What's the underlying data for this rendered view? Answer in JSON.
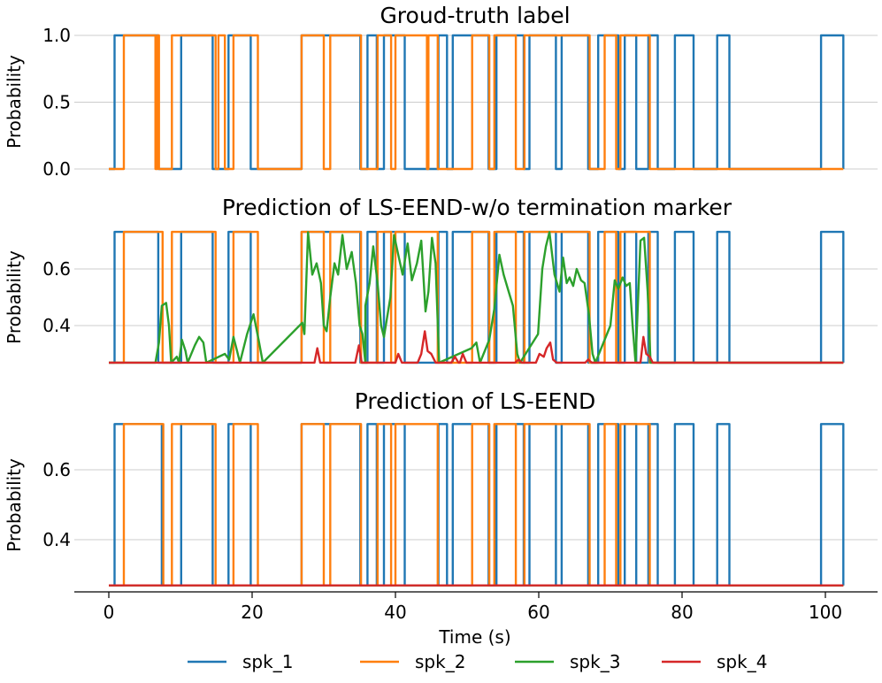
{
  "colors": {
    "spk_1": "#1f77b4",
    "spk_2": "#ff7f0e",
    "spk_3": "#2ca02c",
    "spk_4": "#d62728",
    "grid": "#cccccc"
  },
  "chart_data": [
    {
      "type": "line",
      "title": "Groud-truth label",
      "ylabel": "Probability",
      "xlabel": "",
      "xlim": [
        -2,
        108
      ],
      "ylim": [
        -0.03,
        1.03
      ],
      "yticks": [
        0.0,
        0.5,
        1.0
      ],
      "ytick_labels": [
        "0.0",
        "0.5",
        "1.0"
      ],
      "grid": true,
      "series": [
        {
          "name": "spk_1",
          "low": 0.0,
          "high": 1.0,
          "segments": [
            [
              0.8,
              6.9
            ],
            [
              10.1,
              14.5
            ],
            [
              16.7,
              19.8
            ],
            [
              26.9,
              35.1
            ],
            [
              36.1,
              37.4
            ],
            [
              38.4,
              41.3
            ],
            [
              46.0,
              47.2
            ],
            [
              48.0,
              53.0
            ],
            [
              54.1,
              57.9
            ],
            [
              58.7,
              62.4
            ],
            [
              63.2,
              66.9
            ],
            [
              68.3,
              71.1
            ],
            [
              72.0,
              73.6
            ],
            [
              75.3,
              76.6
            ],
            [
              79.0,
              81.6
            ],
            [
              84.9,
              86.6
            ],
            [
              99.4,
              102.5
            ]
          ]
        },
        {
          "name": "spk_2",
          "low": 0.0,
          "high": 1.0,
          "segments": [
            [
              2.1,
              6.5
            ],
            [
              6.8,
              7.0
            ],
            [
              8.8,
              14.9
            ],
            [
              15.3,
              16.2
            ],
            [
              17.4,
              20.8
            ],
            [
              26.9,
              30.0
            ],
            [
              30.9,
              35.2
            ],
            [
              37.5,
              39.4
            ],
            [
              40.0,
              44.4
            ],
            [
              44.6,
              45.9
            ],
            [
              50.7,
              53.1
            ],
            [
              53.8,
              56.8
            ],
            [
              58.0,
              67.1
            ],
            [
              69.2,
              70.8
            ],
            [
              71.4,
              75.5
            ]
          ]
        }
      ]
    },
    {
      "type": "line",
      "title": "Prediction of LS-EEND-w/o termination marker",
      "ylabel": "Probability",
      "xlabel": "",
      "xlim": [
        -2,
        108
      ],
      "ylim": [
        0.26,
        0.745
      ],
      "yticks": [
        0.4,
        0.6
      ],
      "ytick_labels": [
        "0.4",
        "0.6"
      ],
      "grid": true,
      "series": [
        {
          "name": "spk_1",
          "low": 0.269,
          "high": 0.731,
          "segments": [
            [
              0.8,
              6.9
            ],
            [
              10.1,
              14.5
            ],
            [
              16.7,
              19.8
            ],
            [
              26.9,
              35.1
            ],
            [
              36.1,
              37.4
            ],
            [
              38.4,
              41.3
            ],
            [
              46.0,
              47.2
            ],
            [
              48.0,
              53.0
            ],
            [
              54.1,
              57.9
            ],
            [
              58.7,
              62.4
            ],
            [
              63.2,
              66.9
            ],
            [
              68.3,
              71.1
            ],
            [
              72.0,
              73.6
            ],
            [
              75.3,
              76.6
            ],
            [
              79.0,
              81.6
            ],
            [
              84.9,
              86.6
            ],
            [
              99.4,
              102.5
            ]
          ]
        },
        {
          "name": "spk_2",
          "low": 0.269,
          "high": 0.731,
          "segments": [
            [
              2.1,
              7.5
            ],
            [
              8.8,
              14.9
            ],
            [
              17.4,
              20.8
            ],
            [
              26.9,
              30.0
            ],
            [
              30.9,
              35.2
            ],
            [
              37.5,
              39.4
            ],
            [
              40.0,
              45.9
            ],
            [
              50.7,
              53.1
            ],
            [
              53.8,
              56.8
            ],
            [
              58.0,
              67.1
            ],
            [
              69.2,
              70.8
            ],
            [
              71.4,
              75.5
            ]
          ]
        },
        {
          "name": "spk_3",
          "baseline": 0.269,
          "points": [
            [
              6.5,
              0.269
            ],
            [
              7.0,
              0.34
            ],
            [
              7.4,
              0.47
            ],
            [
              8.0,
              0.48
            ],
            [
              8.4,
              0.4
            ],
            [
              8.7,
              0.269
            ],
            [
              9.5,
              0.29
            ],
            [
              9.8,
              0.269
            ],
            [
              10.2,
              0.35
            ],
            [
              10.7,
              0.31
            ],
            [
              11.0,
              0.269
            ],
            [
              12.0,
              0.33
            ],
            [
              12.6,
              0.36
            ],
            [
              13.2,
              0.34
            ],
            [
              13.6,
              0.269
            ],
            [
              16.2,
              0.3
            ],
            [
              16.8,
              0.28
            ],
            [
              17.4,
              0.36
            ],
            [
              17.9,
              0.31
            ],
            [
              18.3,
              0.269
            ],
            [
              19.3,
              0.37
            ],
            [
              20.2,
              0.44
            ],
            [
              20.9,
              0.35
            ],
            [
              21.5,
              0.269
            ],
            [
              27.0,
              0.41
            ],
            [
              27.3,
              0.37
            ],
            [
              27.8,
              0.73
            ],
            [
              28.4,
              0.58
            ],
            [
              29.0,
              0.62
            ],
            [
              29.6,
              0.55
            ],
            [
              30.0,
              0.4
            ],
            [
              30.4,
              0.38
            ],
            [
              30.9,
              0.5
            ],
            [
              31.5,
              0.62
            ],
            [
              32.0,
              0.58
            ],
            [
              32.6,
              0.72
            ],
            [
              33.2,
              0.6
            ],
            [
              33.9,
              0.66
            ],
            [
              34.5,
              0.55
            ],
            [
              35.0,
              0.4
            ],
            [
              35.4,
              0.37
            ],
            [
              35.8,
              0.269
            ],
            [
              35.8,
              0.47
            ],
            [
              36.4,
              0.55
            ],
            [
              36.9,
              0.68
            ],
            [
              37.5,
              0.55
            ],
            [
              38.0,
              0.4
            ],
            [
              38.4,
              0.36
            ],
            [
              39.3,
              0.5
            ],
            [
              39.8,
              0.72
            ],
            [
              40.4,
              0.65
            ],
            [
              41.0,
              0.58
            ],
            [
              41.7,
              0.69
            ],
            [
              42.3,
              0.56
            ],
            [
              43.0,
              0.62
            ],
            [
              43.6,
              0.7
            ],
            [
              44.2,
              0.45
            ],
            [
              44.6,
              0.52
            ],
            [
              45.1,
              0.71
            ],
            [
              45.6,
              0.62
            ],
            [
              46.1,
              0.269
            ],
            [
              50.6,
              0.32
            ],
            [
              51.3,
              0.34
            ],
            [
              51.8,
              0.269
            ],
            [
              53.1,
              0.35
            ],
            [
              53.8,
              0.46
            ],
            [
              54.5,
              0.65
            ],
            [
              55.1,
              0.58
            ],
            [
              55.8,
              0.52
            ],
            [
              56.4,
              0.47
            ],
            [
              57.0,
              0.3
            ],
            [
              57.4,
              0.269
            ],
            [
              59.9,
              0.37
            ],
            [
              60.5,
              0.6
            ],
            [
              61.0,
              0.68
            ],
            [
              61.5,
              0.73
            ],
            [
              62.2,
              0.58
            ],
            [
              62.9,
              0.52
            ],
            [
              63.4,
              0.64
            ],
            [
              63.9,
              0.55
            ],
            [
              64.3,
              0.57
            ],
            [
              64.8,
              0.54
            ],
            [
              65.3,
              0.6
            ],
            [
              65.9,
              0.56
            ],
            [
              66.4,
              0.55
            ],
            [
              67.0,
              0.44
            ],
            [
              67.5,
              0.3
            ],
            [
              67.9,
              0.269
            ],
            [
              70.0,
              0.4
            ],
            [
              70.6,
              0.56
            ],
            [
              71.1,
              0.53
            ],
            [
              71.7,
              0.57
            ],
            [
              72.2,
              0.54
            ],
            [
              72.7,
              0.55
            ],
            [
              73.1,
              0.4
            ],
            [
              73.5,
              0.27
            ],
            [
              74.2,
              0.7
            ],
            [
              74.7,
              0.71
            ],
            [
              75.2,
              0.52
            ],
            [
              75.6,
              0.269
            ]
          ]
        },
        {
          "name": "spk_4",
          "baseline": 0.269,
          "points": [
            [
              0.0,
              0.269
            ],
            [
              28.7,
              0.269
            ],
            [
              29.1,
              0.32
            ],
            [
              29.5,
              0.269
            ],
            [
              34.4,
              0.269
            ],
            [
              34.9,
              0.33
            ],
            [
              35.3,
              0.269
            ],
            [
              40.0,
              0.269
            ],
            [
              40.4,
              0.3
            ],
            [
              40.9,
              0.269
            ],
            [
              43.1,
              0.269
            ],
            [
              43.6,
              0.3
            ],
            [
              44.1,
              0.38
            ],
            [
              44.5,
              0.31
            ],
            [
              45.0,
              0.3
            ],
            [
              45.6,
              0.269
            ],
            [
              47.8,
              0.269
            ],
            [
              48.3,
              0.29
            ],
            [
              48.8,
              0.269
            ],
            [
              49.0,
              0.269
            ],
            [
              49.4,
              0.3
            ],
            [
              49.9,
              0.269
            ],
            [
              56.7,
              0.269
            ],
            [
              57.2,
              0.28
            ],
            [
              57.6,
              0.269
            ],
            [
              59.6,
              0.269
            ],
            [
              60.1,
              0.3
            ],
            [
              60.7,
              0.29
            ],
            [
              61.1,
              0.32
            ],
            [
              61.6,
              0.34
            ],
            [
              62.0,
              0.28
            ],
            [
              62.5,
              0.269
            ],
            [
              66.5,
              0.269
            ],
            [
              66.9,
              0.28
            ],
            [
              67.4,
              0.269
            ],
            [
              74.2,
              0.269
            ],
            [
              74.6,
              0.36
            ],
            [
              75.0,
              0.3
            ],
            [
              75.5,
              0.29
            ],
            [
              75.9,
              0.269
            ],
            [
              102.5,
              0.269
            ]
          ]
        }
      ]
    },
    {
      "type": "line",
      "title": "Prediction of LS-EEND",
      "ylabel": "Probability",
      "xlabel": "Time (s)",
      "xlim": [
        -2,
        108
      ],
      "ylim": [
        0.26,
        0.745
      ],
      "yticks": [
        0.4,
        0.6
      ],
      "ytick_labels": [
        "0.4",
        "0.6"
      ],
      "xticks": [
        0,
        20,
        40,
        60,
        80,
        100
      ],
      "xtick_labels": [
        "0",
        "20",
        "40",
        "60",
        "80",
        "100"
      ],
      "grid": true,
      "series": [
        {
          "name": "spk_1",
          "low": 0.269,
          "high": 0.731,
          "segments": [
            [
              0.8,
              7.4
            ],
            [
              10.1,
              14.5
            ],
            [
              16.7,
              19.8
            ],
            [
              26.9,
              35.1
            ],
            [
              36.1,
              37.4
            ],
            [
              38.4,
              41.3
            ],
            [
              46.0,
              47.2
            ],
            [
              48.0,
              53.0
            ],
            [
              54.1,
              57.9
            ],
            [
              58.7,
              62.4
            ],
            [
              63.2,
              66.9
            ],
            [
              68.3,
              71.1
            ],
            [
              72.0,
              73.6
            ],
            [
              75.3,
              76.6
            ],
            [
              79.0,
              81.6
            ],
            [
              84.9,
              86.6
            ],
            [
              99.4,
              102.5
            ]
          ]
        },
        {
          "name": "spk_2",
          "low": 0.269,
          "high": 0.731,
          "segments": [
            [
              2.1,
              7.6
            ],
            [
              8.8,
              14.9
            ],
            [
              17.4,
              20.8
            ],
            [
              26.9,
              30.0
            ],
            [
              30.9,
              35.2
            ],
            [
              37.5,
              39.4
            ],
            [
              40.0,
              45.9
            ],
            [
              50.7,
              53.1
            ],
            [
              53.8,
              56.8
            ],
            [
              58.0,
              67.1
            ],
            [
              69.2,
              70.8
            ],
            [
              71.4,
              75.5
            ]
          ]
        },
        {
          "name": "spk_3",
          "baseline": 0.269,
          "points": [
            [
              0.0,
              0.269
            ],
            [
              102.5,
              0.269
            ]
          ]
        },
        {
          "name": "spk_4",
          "baseline": 0.269,
          "points": [
            [
              0.0,
              0.269
            ],
            [
              102.5,
              0.269
            ]
          ]
        }
      ]
    }
  ],
  "legend": {
    "placement": "bottom-center",
    "entries": [
      "spk_1",
      "spk_2",
      "spk_3",
      "spk_4"
    ]
  }
}
